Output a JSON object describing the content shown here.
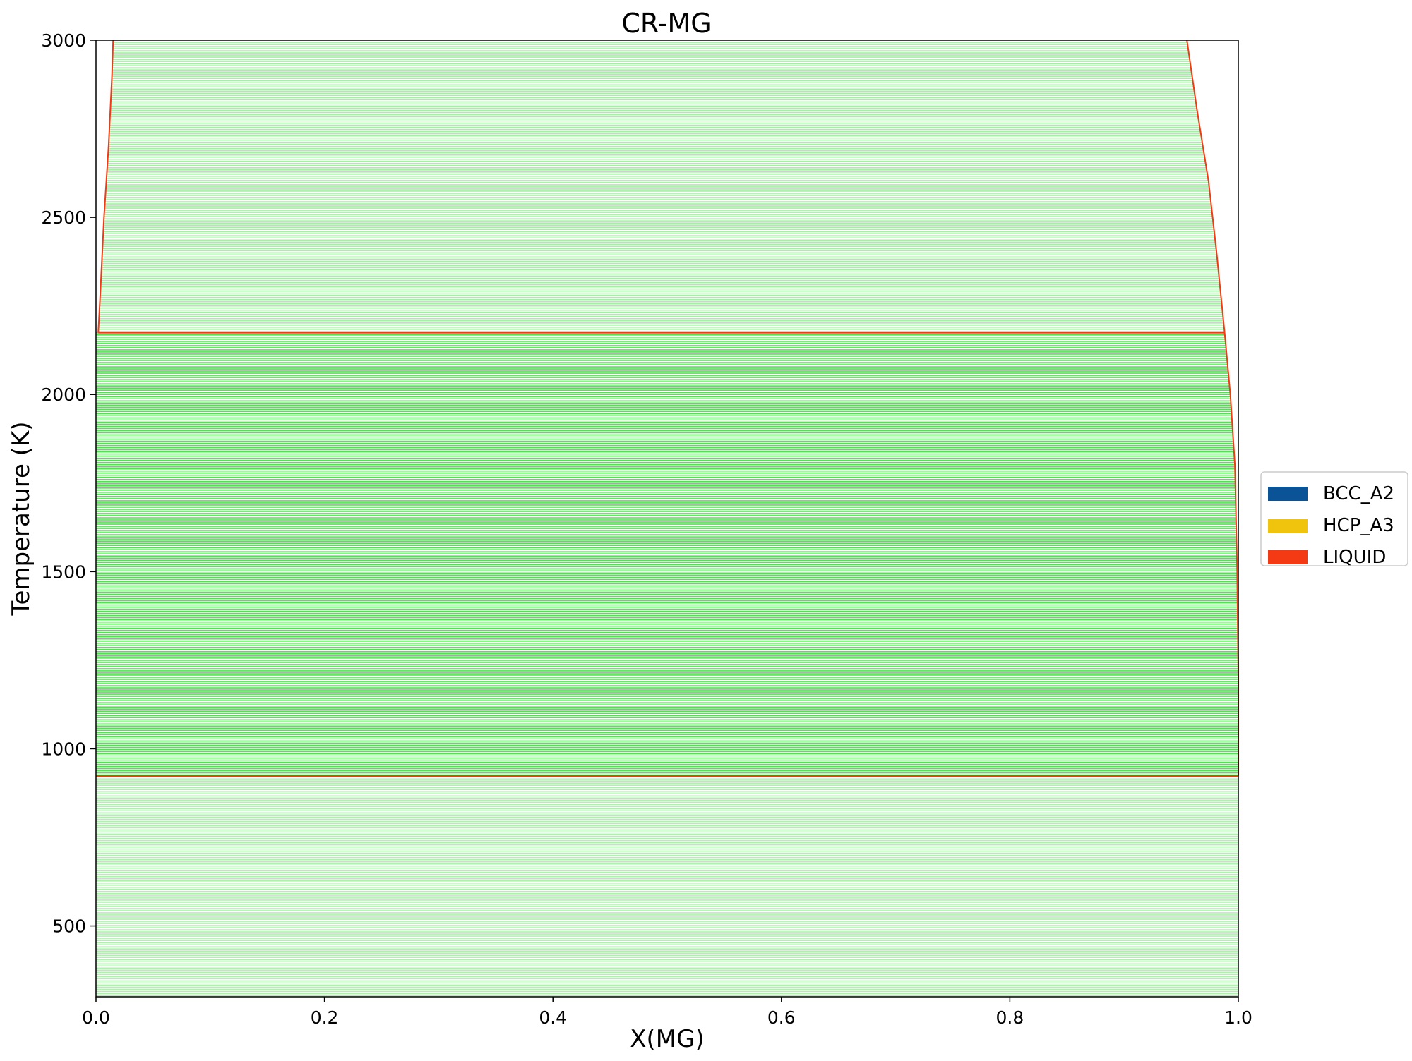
{
  "chart_data": {
    "type": "phase_diagram",
    "title": "CR-MG",
    "xlabel": "X(MG)",
    "ylabel": "Temperature (K)",
    "xlim": [
      0.0,
      1.0
    ],
    "ylim": [
      300,
      3000
    ],
    "xticks": [
      "0.0",
      "0.2",
      "0.4",
      "0.6",
      "0.8",
      "1.0"
    ],
    "yticks": [
      "500",
      "1000",
      "1500",
      "2000",
      "2500",
      "3000"
    ],
    "grid": false,
    "legend_position": "right-center",
    "legend": [
      {
        "name": "BCC_A2",
        "color": "#0a5396"
      },
      {
        "name": "HCP_A3",
        "color": "#f0c40c"
      },
      {
        "name": "LIQUID",
        "color": "#f43a15"
      }
    ],
    "boundary_color": "#f43a15",
    "tieline_color": "#32dc32",
    "invariants": [
      {
        "temperature": 2175,
        "x_start": 0.002,
        "x_end": 0.988
      },
      {
        "temperature": 923,
        "x_start": 0.0,
        "x_end": 1.0
      }
    ],
    "liquidus_left": [
      {
        "x": 0.002,
        "y": 2175
      },
      {
        "x": 0.004,
        "y": 2300
      },
      {
        "x": 0.007,
        "y": 2500
      },
      {
        "x": 0.011,
        "y": 2700
      },
      {
        "x": 0.014,
        "y": 2900
      },
      {
        "x": 0.015,
        "y": 3000
      }
    ],
    "liquidus_right": [
      {
        "x": 0.955,
        "y": 3000
      },
      {
        "x": 0.964,
        "y": 2800
      },
      {
        "x": 0.974,
        "y": 2600
      },
      {
        "x": 0.981,
        "y": 2400
      },
      {
        "x": 0.988,
        "y": 2175
      }
    ],
    "solvus_right": [
      {
        "x": 0.988,
        "y": 2175
      },
      {
        "x": 0.993,
        "y": 2000
      },
      {
        "x": 0.997,
        "y": 1800
      },
      {
        "x": 0.999,
        "y": 1500
      },
      {
        "x": 1.0,
        "y": 1200
      },
      {
        "x": 1.0,
        "y": 923
      }
    ],
    "tielines_upper": {
      "t_min": 2175,
      "t_max": 3000,
      "step": 6,
      "opacity": 0.45
    },
    "tielines_middle": {
      "t_min": 923,
      "t_max": 2175,
      "step": 6,
      "opacity": 0.85
    },
    "tielines_lower": {
      "t_min": 300,
      "t_max": 923,
      "step": 6,
      "opacity": 0.4
    }
  }
}
